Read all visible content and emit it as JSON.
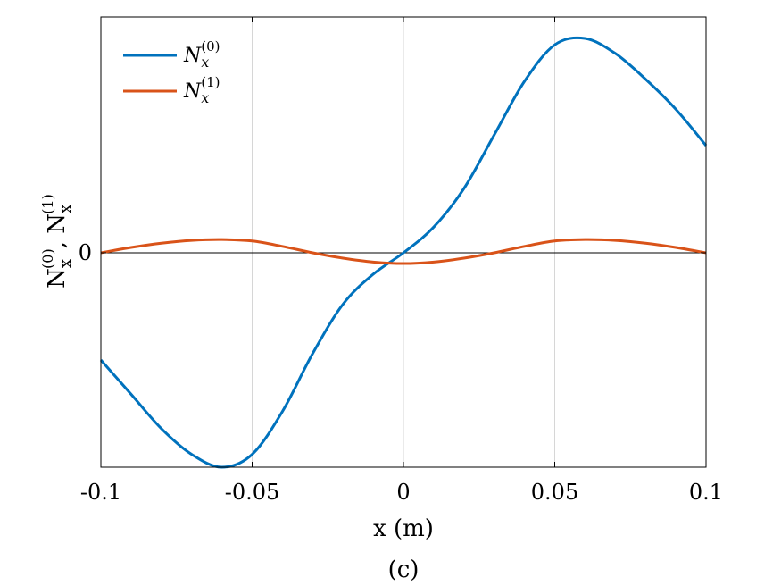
{
  "chart_data": {
    "type": "line",
    "xlabel": "x (m)",
    "ylabel": {
      "base1": "N",
      "sub1": "x",
      "sup1": "(0)",
      "sep": ", ",
      "base2": "N",
      "sub2": "x",
      "sup2": "(1)"
    },
    "panel_label": "(c)",
    "xlim": [
      -0.1,
      0.1
    ],
    "ylim": [
      -1.0,
      1.1
    ],
    "x_ticks": [
      -0.1,
      -0.05,
      0,
      0.05,
      0.1
    ],
    "x_tick_labels": [
      "-0.1",
      "-0.05",
      "0",
      "0.05",
      "0.1"
    ],
    "y_ticks": [
      0
    ],
    "y_tick_labels": [
      "0"
    ],
    "grid": "vertical",
    "legend_position": "top-left",
    "series": [
      {
        "label": {
          "base": "N",
          "sub": "x",
          "sup": "(0)"
        },
        "color": "#0072BD",
        "x": [
          -0.1,
          -0.09,
          -0.08,
          -0.07,
          -0.06,
          -0.05,
          -0.04,
          -0.03,
          -0.02,
          -0.01,
          0,
          0.01,
          0.02,
          0.03,
          0.04,
          0.05,
          0.06,
          0.07,
          0.08,
          0.09,
          0.1
        ],
        "y": [
          -0.5,
          -0.66,
          -0.82,
          -0.94,
          -1.0,
          -0.94,
          -0.74,
          -0.47,
          -0.24,
          -0.1,
          0.0,
          0.12,
          0.3,
          0.55,
          0.8,
          0.97,
          1.0,
          0.93,
          0.81,
          0.67,
          0.5
        ]
      },
      {
        "label": {
          "base": "N",
          "sub": "x",
          "sup": "(1)"
        },
        "color": "#D95319",
        "x": [
          -0.1,
          -0.09,
          -0.08,
          -0.07,
          -0.06,
          -0.05,
          -0.04,
          -0.03,
          -0.02,
          -0.01,
          0,
          0.01,
          0.02,
          0.03,
          0.04,
          0.05,
          0.06,
          0.07,
          0.08,
          0.09,
          0.1
        ],
        "y": [
          0.0,
          0.025,
          0.045,
          0.058,
          0.062,
          0.055,
          0.03,
          0.0,
          -0.025,
          -0.043,
          -0.05,
          -0.043,
          -0.025,
          0.0,
          0.03,
          0.055,
          0.062,
          0.058,
          0.045,
          0.025,
          0.0
        ]
      }
    ]
  }
}
